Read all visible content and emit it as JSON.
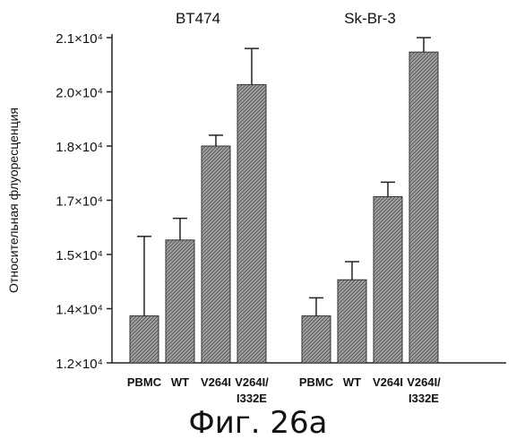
{
  "chart_data": {
    "type": "bar",
    "ylabel": "Относительная флуоресценция",
    "y_tick_labels": [
      "1.2×10⁴",
      "1.4×10⁴",
      "1.5×10⁴",
      "1.7×10⁴",
      "1.8×10⁴",
      "2.0×10⁴",
      "2.1×10⁴"
    ],
    "ylim": [
      1.2,
      2.1
    ],
    "y_unit_note": "values in units of 10^4",
    "grid": false,
    "groups": [
      {
        "name": "BT474",
        "categories": [
          "PBMC",
          "WT",
          "V264I",
          "V264I/\nI332E"
        ],
        "values": [
          1.33,
          1.54,
          1.8,
          1.97
        ],
        "errors": [
          0.22,
          0.06,
          0.03,
          0.1
        ]
      },
      {
        "name": "Sk-Br-3",
        "categories": [
          "PBMC",
          "WT",
          "V264I",
          "V264I/\nI332E"
        ],
        "values": [
          1.33,
          1.43,
          1.66,
          2.06
        ],
        "errors": [
          0.05,
          0.05,
          0.04,
          0.04
        ]
      }
    ],
    "bar_color": "#9a9a9a"
  },
  "caption": "Фиг. 26a"
}
